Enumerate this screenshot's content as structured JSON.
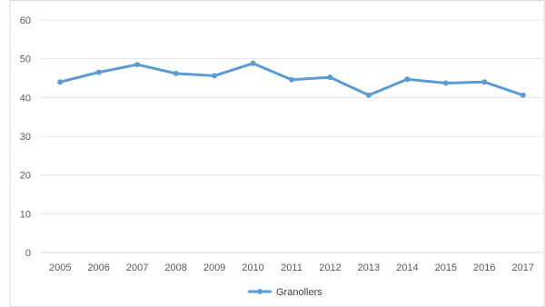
{
  "chart_data": {
    "type": "line",
    "title": "",
    "xlabel": "",
    "ylabel": "",
    "categories": [
      "2005",
      "2006",
      "2007",
      "2008",
      "2009",
      "2010",
      "2011",
      "2012",
      "2013",
      "2014",
      "2015",
      "2016",
      "2017"
    ],
    "series": [
      {
        "name": "Granollers",
        "values": [
          44,
          46.5,
          48.5,
          46.2,
          45.6,
          48.8,
          44.6,
          45.2,
          40.6,
          44.7,
          43.7,
          44,
          40.6
        ],
        "color": "#5b9bd5"
      }
    ],
    "ylim": [
      0,
      60
    ],
    "yticks": [
      "0",
      "10",
      "20",
      "30",
      "40",
      "50",
      "60"
    ],
    "grid": true,
    "legend_position": "bottom"
  }
}
